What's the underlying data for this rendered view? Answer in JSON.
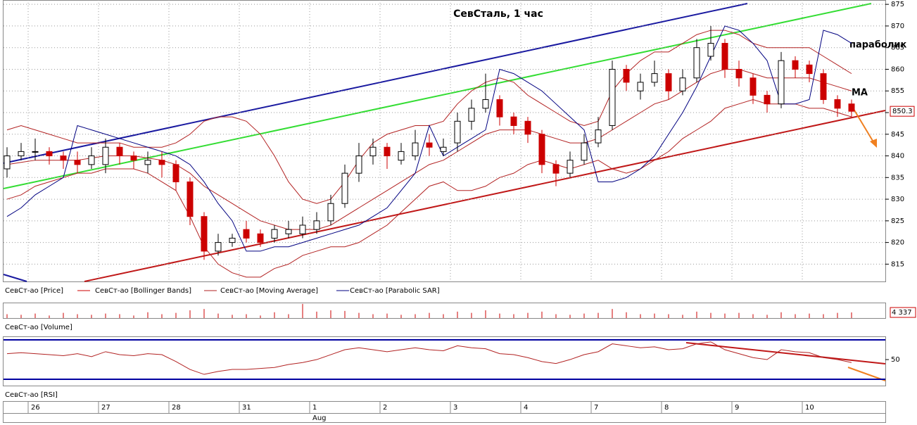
{
  "chart_data": {
    "type": "candlestick",
    "title": "СевСталь, 1 час",
    "annotations": [
      "параболик",
      "MA"
    ],
    "categories": [
      null,
      null,
      "26",
      null,
      null,
      null,
      null,
      "27",
      null,
      null,
      null,
      null,
      "28",
      null,
      null,
      null,
      null,
      "31",
      null,
      null,
      null,
      null,
      "1",
      null,
      null,
      null,
      null,
      "2",
      null,
      null,
      null,
      null,
      "3",
      null,
      null,
      null,
      null,
      "4",
      null,
      null,
      null,
      null,
      "7",
      null,
      null,
      null,
      null,
      "8",
      null,
      null,
      null,
      null,
      "9",
      null,
      null,
      null,
      null,
      "10",
      null,
      null,
      null
    ],
    "months": [
      null,
      null,
      null,
      null,
      null,
      null,
      null,
      null,
      null,
      null,
      null,
      null,
      null,
      null,
      null,
      null,
      null,
      null,
      null,
      null,
      null,
      null,
      "Aug",
      null,
      null,
      null,
      null,
      null,
      null,
      null,
      null,
      null,
      null,
      null,
      null,
      null,
      null,
      null,
      null,
      null,
      null,
      null,
      null,
      null,
      null,
      null,
      null,
      null,
      null,
      null,
      null,
      null,
      null,
      null,
      null,
      null,
      null,
      null,
      null,
      null,
      null
    ],
    "ylim": [
      811,
      876
    ],
    "yticks": [
      815,
      820,
      825,
      830,
      835,
      840,
      845,
      850,
      855,
      860,
      865,
      870,
      875
    ],
    "grid": true,
    "last_price": 850.3,
    "series": [
      {
        "name": "СевСт-ао [Price]",
        "color": "#cc0000",
        "open": [
          837,
          840,
          841,
          841,
          840,
          839,
          838,
          838,
          842,
          840,
          838,
          839,
          838,
          834,
          826,
          818,
          820,
          823,
          822,
          821,
          822,
          822,
          823,
          825,
          829,
          836,
          840,
          842,
          839,
          840,
          843,
          841,
          843,
          848,
          851,
          853,
          849,
          848,
          845,
          838,
          836,
          839,
          843,
          847,
          860,
          855,
          857,
          859,
          855,
          858,
          863,
          866,
          860,
          858,
          854,
          852,
          862,
          861,
          859,
          853,
          852
        ],
        "high": [
          842,
          843,
          844,
          842,
          841,
          841,
          842,
          844,
          843,
          841,
          841,
          841,
          839,
          835,
          827,
          822,
          822,
          825,
          823,
          824,
          825,
          826,
          827,
          831,
          838,
          843,
          844,
          843,
          843,
          846,
          845,
          844,
          850,
          853,
          859,
          854,
          850,
          849,
          846,
          839,
          841,
          845,
          849,
          862,
          861,
          859,
          862,
          860,
          860,
          867,
          870,
          867,
          862,
          859,
          855,
          864,
          863,
          862,
          860,
          854,
          853
        ],
        "low": [
          835,
          839,
          839,
          838,
          837,
          836,
          837,
          836,
          838,
          837,
          836,
          835,
          832,
          824,
          816,
          817,
          819,
          820,
          819,
          820,
          821,
          821,
          822,
          824,
          828,
          834,
          838,
          837,
          838,
          839,
          840,
          840,
          841,
          846,
          850,
          847,
          845,
          843,
          836,
          833,
          835,
          838,
          842,
          846,
          855,
          853,
          856,
          853,
          854,
          857,
          862,
          858,
          856,
          852,
          850,
          851,
          858,
          857,
          852,
          849,
          849
        ],
        "close": [
          840,
          841,
          841,
          840,
          839,
          838,
          840,
          842,
          840,
          839,
          839,
          838,
          834,
          826,
          818,
          820,
          821,
          821,
          820,
          823,
          823,
          824,
          825,
          829,
          836,
          840,
          842,
          840,
          841,
          843,
          842,
          842,
          848,
          851,
          853,
          849,
          847,
          845,
          838,
          836,
          839,
          843,
          846,
          860,
          857,
          857,
          859,
          855,
          858,
          865,
          866,
          860,
          858,
          854,
          852,
          862,
          860,
          859,
          853,
          851,
          850.3
        ]
      },
      {
        "name": "СевСт-ао [Bollinger Bands]",
        "color": "#b22222",
        "upper": [
          846,
          847,
          846,
          845,
          844,
          843,
          843,
          843,
          843,
          842,
          842,
          842,
          843,
          845,
          848,
          849,
          849,
          848,
          845,
          840,
          834,
          830,
          829,
          830,
          834,
          839,
          843,
          845,
          846,
          847,
          847,
          848,
          852,
          855,
          857,
          858,
          857,
          854,
          852,
          850,
          848,
          847,
          848,
          855,
          859,
          862,
          864,
          864,
          866,
          868,
          869,
          869,
          868,
          866,
          865,
          865,
          865,
          865,
          863,
          861,
          859
        ],
        "lower": [
          830,
          831,
          833,
          834,
          835,
          836,
          836,
          837,
          837,
          837,
          836,
          834,
          832,
          826,
          819,
          815,
          813,
          812,
          812,
          814,
          815,
          817,
          818,
          819,
          819,
          820,
          822,
          824,
          827,
          830,
          833,
          834,
          832,
          832,
          833,
          835,
          836,
          838,
          839,
          838,
          837,
          838,
          839,
          837,
          836,
          837,
          839,
          841,
          844,
          846,
          848,
          851,
          852,
          853,
          852,
          852,
          852,
          851,
          851,
          850,
          849
        ]
      },
      {
        "name": "СевСт-ао [Moving Average]",
        "color": "#b22222",
        "values": [
          838,
          838.5,
          839,
          839,
          839,
          839,
          839.5,
          840,
          840,
          840,
          839.5,
          839,
          838,
          836,
          833,
          831,
          829,
          827,
          825,
          824,
          823,
          823,
          823,
          824,
          826,
          828,
          830,
          832,
          834,
          836,
          838,
          839,
          841,
          843,
          845,
          846,
          846,
          846,
          845,
          844,
          843,
          843,
          844,
          846,
          848,
          850,
          852,
          853,
          855,
          857,
          859,
          860,
          860,
          859,
          858,
          858,
          858,
          858,
          857,
          856,
          855
        ]
      },
      {
        "name": "СевСт-ао [Parabolic SAR]",
        "color": "#000080",
        "values": [
          826,
          828,
          831,
          833,
          835,
          847,
          846,
          845,
          844,
          843,
          842,
          841,
          840,
          838,
          834,
          829,
          825,
          818,
          818,
          819,
          819,
          820,
          821,
          822,
          823,
          824,
          826,
          828,
          832,
          836,
          847,
          840,
          842,
          844,
          846,
          860,
          859,
          857,
          855,
          852,
          849,
          846,
          834,
          834,
          835,
          837,
          840,
          845,
          850,
          856,
          863,
          870,
          869,
          866,
          862,
          852,
          852,
          853,
          869,
          868,
          866
        ]
      }
    ],
    "volume": {
      "name": "СевСт-ао [Volume]",
      "color": "#cc0000",
      "ylim": [
        0,
        12000
      ],
      "last": {
        "value": 4337,
        "label": "4 337"
      },
      "values": [
        3000,
        2500,
        3500,
        2000,
        4000,
        3000,
        2500,
        3500,
        3000,
        2000,
        4500,
        3000,
        4000,
        6000,
        7000,
        3500,
        2500,
        3000,
        2000,
        4500,
        3000,
        11000,
        5000,
        6000,
        5500,
        4000,
        3000,
        3500,
        2500,
        3000,
        4000,
        3000,
        5000,
        4000,
        6000,
        3500,
        3000,
        4000,
        5000,
        3000,
        2500,
        3500,
        4000,
        7000,
        4500,
        3000,
        3500,
        3000,
        2500,
        5000,
        4000,
        3500,
        4000,
        3000,
        2500,
        4500,
        3000,
        3500,
        3000,
        4000,
        4337
      ]
    },
    "rsi": {
      "name": "СевСт-ао [RSI]",
      "color": "#b22222",
      "ylim": [
        23.6,
        73.6
      ],
      "yticks": [
        50
      ],
      "levels": [
        70,
        30
      ],
      "level_color": "#0000a0",
      "values": [
        56,
        57,
        56,
        55,
        54,
        56,
        53,
        58,
        55,
        54,
        56,
        55,
        48,
        40,
        35,
        38,
        40,
        40,
        41,
        42,
        45,
        47,
        50,
        55,
        60,
        62,
        60,
        58,
        60,
        62,
        60,
        59,
        64,
        62,
        61,
        56,
        55,
        52,
        48,
        46,
        50,
        55,
        58,
        66,
        64,
        62,
        63,
        60,
        61,
        66,
        68,
        60,
        56,
        52,
        50,
        60,
        58,
        57,
        52,
        50,
        47
      ]
    }
  }
}
